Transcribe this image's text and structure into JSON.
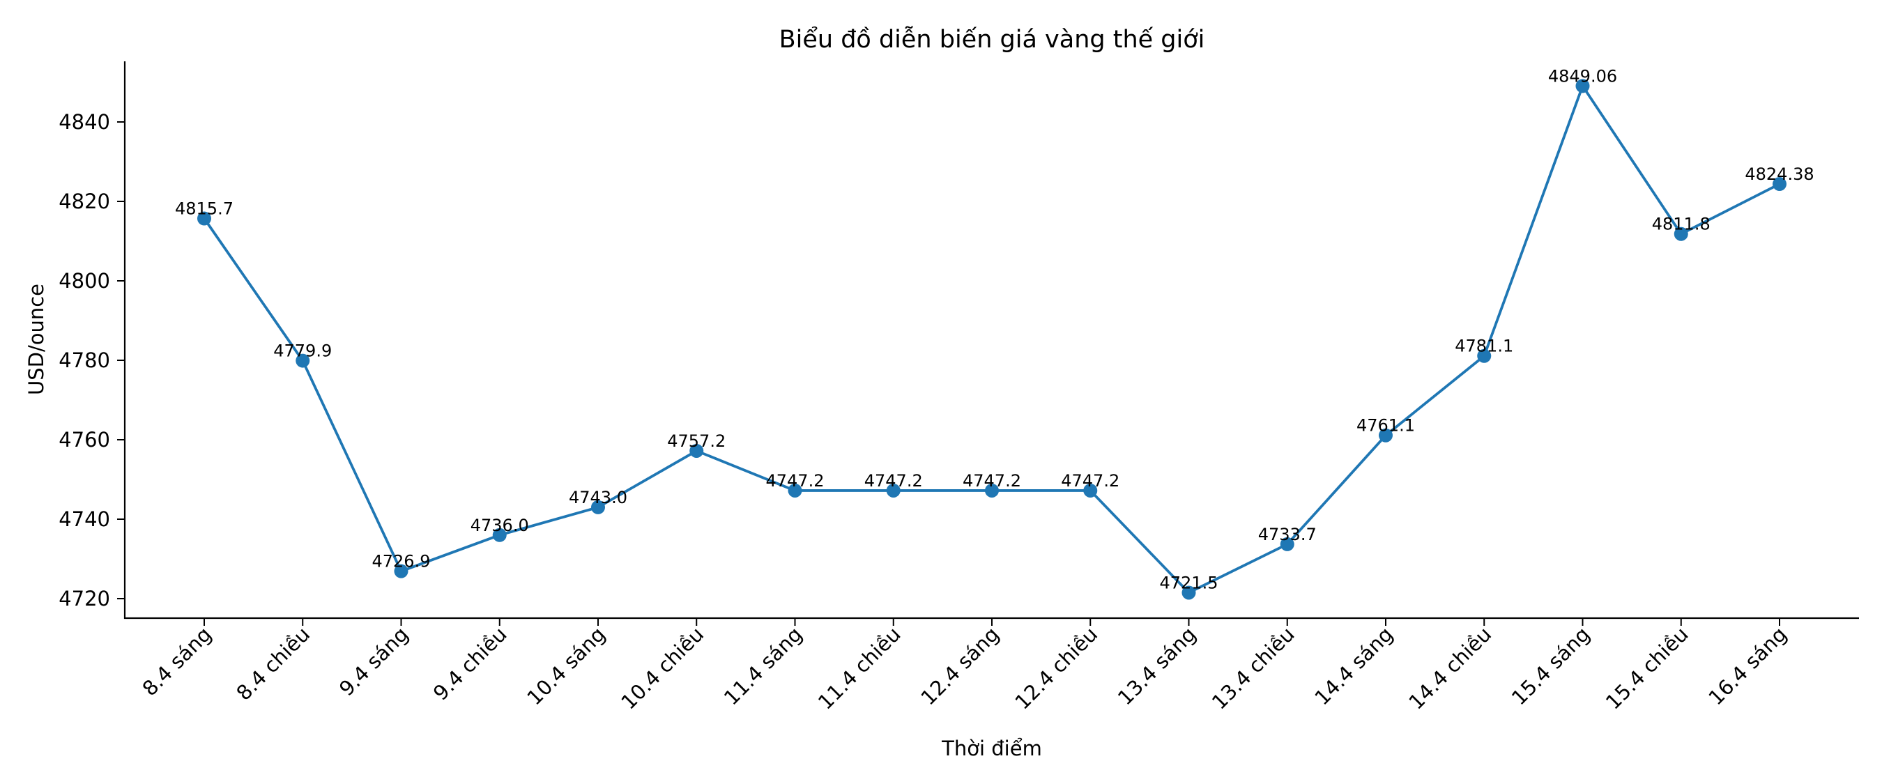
{
  "chart_data": {
    "type": "line",
    "title": "Biểu đồ diễn biến giá vàng thế giới",
    "xlabel": "Thời điểm",
    "ylabel": "USD/ounce",
    "categories": [
      "8.4 sáng",
      "8.4 chiều",
      "9.4 sáng",
      "9.4 chiều",
      "10.4 sáng",
      "10.4 chiều",
      "11.4 sáng",
      "11.4 chiều",
      "12.4 sáng",
      "12.4 chiều",
      "13.4 sáng",
      "13.4 chiều",
      "14.4 sáng",
      "14.4 chiều",
      "15.4 sáng",
      "15.4 chiều",
      "16.4 sáng"
    ],
    "series": [
      {
        "name": "Giá vàng thế giới",
        "color": "#1f77b4",
        "values": [
          4815.7,
          4779.9,
          4726.9,
          4736.0,
          4743.0,
          4757.2,
          4747.2,
          4747.2,
          4747.2,
          4747.2,
          4721.5,
          4733.7,
          4761.1,
          4781.1,
          4849.06,
          4811.8,
          4824.38
        ],
        "labels": [
          "4815.7",
          "4779.9",
          "4726.9",
          "4736.0",
          "4743.0",
          "4757.2",
          "4747.2",
          "4747.2",
          "4747.2",
          "4747.2",
          "4721.5",
          "4733.7",
          "4761.1",
          "4781.1",
          "4849.06",
          "4811.8",
          "4824.38"
        ]
      }
    ],
    "yticks": [
      4720,
      4740,
      4760,
      4780,
      4800,
      4820,
      4840
    ],
    "ylim": [
      4715.3,
      4855.4
    ],
    "grid": false,
    "legend": false,
    "markers": "circle",
    "xtick_rotation": -45
  }
}
